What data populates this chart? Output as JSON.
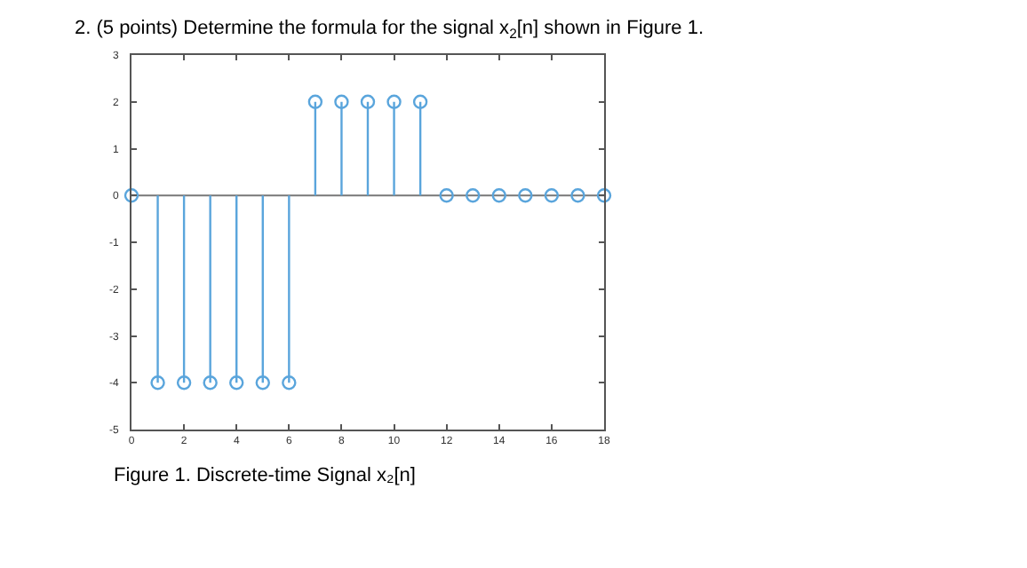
{
  "chart_data": {
    "type": "lollipop",
    "title": "2. (5 points) Determine the formula for the signal x$_{2}$[n] shown in Figure 1.",
    "annotations": [
      "Figure 1. Discrete-time Signal x₂[n]"
    ],
    "x": [
      0,
      1,
      2,
      3,
      4,
      5,
      6,
      7,
      8,
      9,
      10,
      11,
      12,
      13,
      14,
      15,
      16,
      17,
      18
    ],
    "series": [
      {
        "color": "#5aa5dc",
        "values": [
          0,
          -4,
          -4,
          -4,
          -4,
          -4,
          -4,
          2,
          2,
          2,
          2,
          2,
          0,
          0,
          0,
          0,
          0,
          0,
          0
        ]
      }
    ],
    "xlim": [
      0,
      18
    ],
    "xticks": [
      0,
      2,
      4,
      6,
      8,
      10,
      12,
      14,
      16,
      18
    ],
    "ylim": [
      -5,
      3
    ],
    "yticks": [
      -5,
      -4,
      -3,
      -2,
      -1,
      0,
      1,
      2,
      3
    ],
    "ref_lines": [
      {
        "axis": "y",
        "value": 0,
        "color": "#777777"
      }
    ],
    "marker": "circle",
    "grid": false
  }
}
